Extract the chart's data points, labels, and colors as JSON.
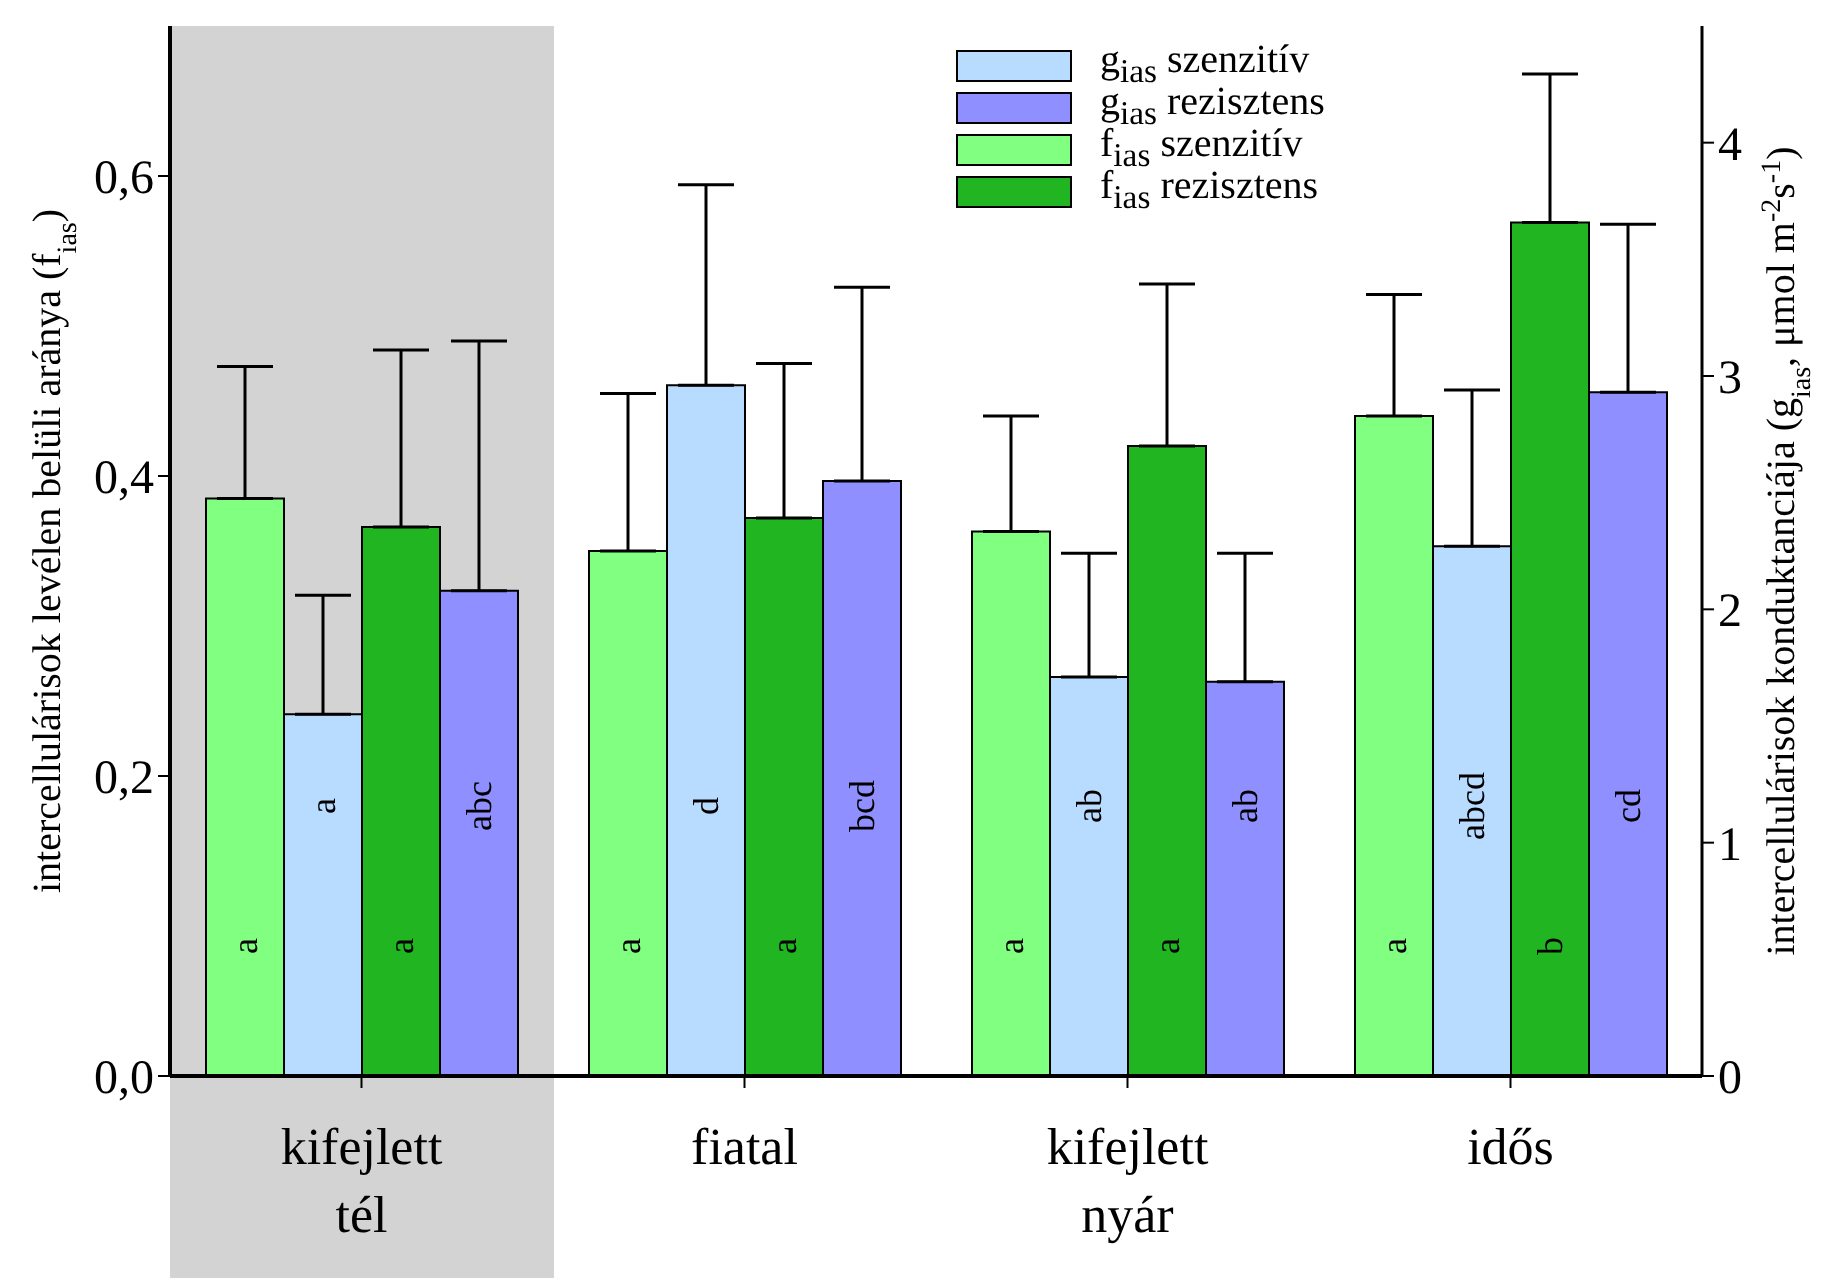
{
  "chart_data": {
    "type": "bar",
    "ylabel": "intercellulárisok levélen belüli aránya  (f$_{ias}$)",
    "y2label": "intercellulárisok konduktanciája (g$_{ias}$, μmol m$^{-2}$s$^{-1}$)",
    "categories": [
      "kifejlett\ntél",
      "fiatal",
      "kifejlett\nnyár",
      "idős"
    ],
    "series": [
      {
        "name": "f$_{ias}$ szenzitív",
        "color": "#80ff80",
        "values": [
          0.385,
          0.35,
          0.363,
          0.44
        ],
        "errors": [
          [
            0.385,
            0.473
          ],
          [
            0.35,
            0.455
          ],
          [
            0.363,
            0.44
          ],
          [
            0.44,
            0.521
          ]
        ],
        "value_labels": [
          "a",
          "a",
          "a",
          "a"
        ]
      },
      {
        "name": "g$_{ias}$ szenzitív",
        "color": "#b8dcff",
        "axis": "y2",
        "values": [
          1.55,
          2.96,
          1.71,
          2.27
        ],
        "errors": [
          [
            1.55,
            2.06
          ],
          [
            2.96,
            3.82
          ],
          [
            1.71,
            2.24
          ],
          [
            2.27,
            2.94
          ]
        ],
        "value_labels": [
          "a",
          "d",
          "ab",
          "abcd"
        ]
      },
      {
        "name": "f$_{ias}$ rezisztens",
        "color": "#22b522",
        "values": [
          0.366,
          0.372,
          0.42,
          0.569
        ],
        "errors": [
          [
            0.366,
            0.484
          ],
          [
            0.372,
            0.475
          ],
          [
            0.42,
            0.528
          ],
          [
            0.569,
            0.668
          ]
        ],
        "value_labels": [
          "a",
          "a",
          "a",
          "b"
        ]
      },
      {
        "name": "g$_{ias}$ rezisztens",
        "color": "#8f8fff",
        "axis": "y2",
        "values": [
          2.08,
          2.55,
          1.69,
          2.93
        ],
        "errors": [
          [
            2.08,
            3.15
          ],
          [
            2.55,
            3.38
          ],
          [
            1.69,
            2.24
          ],
          [
            2.93,
            3.65
          ]
        ],
        "value_labels": [
          "abc",
          "bcd",
          "ab",
          "cd"
        ]
      }
    ],
    "ylim": [
      0,
      0.7
    ],
    "yticks": [
      {
        "value": 0,
        "label": "0,0"
      },
      {
        "value": 0.2,
        "label": "0,2"
      },
      {
        "value": 0.4,
        "label": "0,4"
      },
      {
        "value": 0.6,
        "label": "0,6"
      }
    ],
    "y2lim": [
      0,
      4.5
    ],
    "y2ticks": [
      0,
      1,
      2,
      3,
      4
    ],
    "bands": [
      {
        "axis": "x",
        "from": "kifejlett\ntél",
        "to": "kifejlett\ntél",
        "color": "#d3d3d3"
      }
    ],
    "legend": "top right"
  }
}
